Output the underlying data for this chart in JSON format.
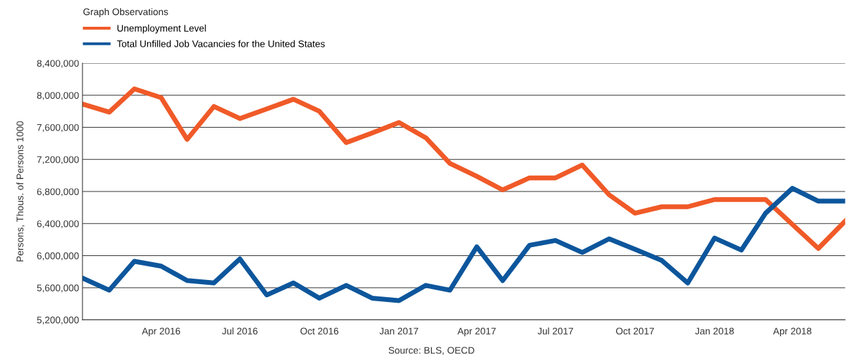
{
  "chart_data": {
    "type": "line",
    "title": "Graph Observations",
    "ylabel": "Persons, Thous. of Persons 1000",
    "x": [
      "2016-01",
      "2016-02",
      "2016-03",
      "2016-04",
      "2016-05",
      "2016-06",
      "2016-07",
      "2016-08",
      "2016-09",
      "2016-10",
      "2016-11",
      "2016-12",
      "2017-01",
      "2017-02",
      "2017-03",
      "2017-04",
      "2017-05",
      "2017-06",
      "2017-07",
      "2017-08",
      "2017-09",
      "2017-10",
      "2017-11",
      "2017-12",
      "2018-01",
      "2018-02",
      "2018-03",
      "2018-04",
      "2018-05",
      "2018-06"
    ],
    "series": [
      {
        "name": "Unemployment Level",
        "color": "#f05a28",
        "values": [
          7890000,
          7790000,
          8080000,
          7970000,
          7450000,
          7860000,
          7710000,
          7830000,
          7950000,
          7800000,
          7410000,
          7530000,
          7660000,
          7470000,
          7150000,
          6990000,
          6820000,
          6970000,
          6970000,
          7130000,
          6760000,
          6530000,
          6610000,
          6610000,
          6700000,
          6700000,
          6700000,
          6390000,
          6090000,
          6430000
        ]
      },
      {
        "name": "Total Unfilled Job Vacancies for the United States",
        "color": "#0d569c",
        "values": [
          5720000,
          5570000,
          5930000,
          5870000,
          5690000,
          5660000,
          5960000,
          5510000,
          5660000,
          5470000,
          5630000,
          5470000,
          5440000,
          5630000,
          5570000,
          6110000,
          5690000,
          6130000,
          6190000,
          6040000,
          6210000,
          6080000,
          5940000,
          5660000,
          6220000,
          6070000,
          6530000,
          6840000,
          6680000,
          6680000
        ]
      }
    ],
    "xlim": [
      "2016-01",
      "2018-06"
    ],
    "xticks": [
      {
        "value": "2016-04",
        "label": "Apr 2016"
      },
      {
        "value": "2016-07",
        "label": "Jul 2016"
      },
      {
        "value": "2016-10",
        "label": "Oct 2016"
      },
      {
        "value": "2017-01",
        "label": "Jan 2017"
      },
      {
        "value": "2017-04",
        "label": "Apr 2017"
      },
      {
        "value": "2017-07",
        "label": "Jul 2017"
      },
      {
        "value": "2017-10",
        "label": "Oct 2017"
      },
      {
        "value": "2018-01",
        "label": "Jan 2018"
      },
      {
        "value": "2018-04",
        "label": "Apr 2018"
      }
    ],
    "ylim": [
      5200000,
      8400000
    ],
    "yticks": [
      {
        "value": 5200000,
        "label": "5,200,000"
      },
      {
        "value": 5600000,
        "label": "5,600,000"
      },
      {
        "value": 6000000,
        "label": "6,000,000"
      },
      {
        "value": 6400000,
        "label": "6,400,000"
      },
      {
        "value": 6800000,
        "label": "6,800,000"
      },
      {
        "value": 7200000,
        "label": "7,200,000"
      },
      {
        "value": 7600000,
        "label": "7,600,000"
      },
      {
        "value": 8000000,
        "label": "8,000,000"
      },
      {
        "value": 8400000,
        "label": "8,400,000"
      }
    ],
    "grid": "y",
    "legend": "top left",
    "marker": "none",
    "line_style": "solid",
    "annotations": [
      "Source: BLS, OECD"
    ]
  }
}
